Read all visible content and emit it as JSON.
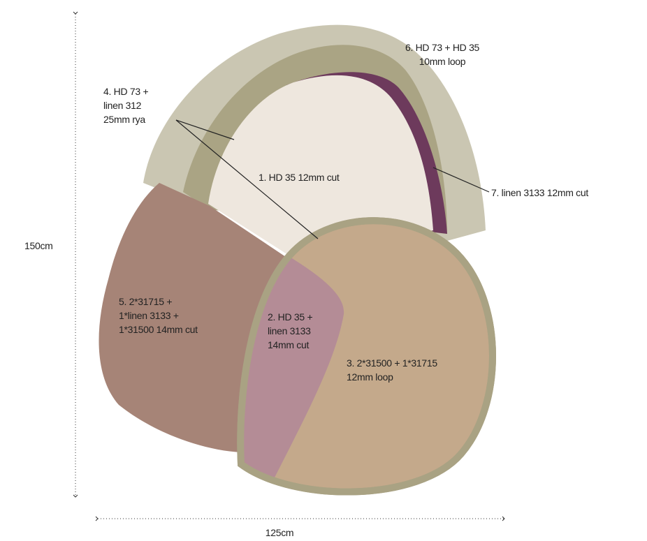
{
  "dimensions": {
    "height": "150cm",
    "width": "125cm"
  },
  "regions": [
    {
      "lines": [
        "1. HD 35  12mm cut"
      ]
    },
    {
      "lines": [
        "2. HD 35 +",
        "linen 3133",
        "14mm cut"
      ]
    },
    {
      "lines": [
        "3. 2*31500 + 1*31715",
        "12mm loop"
      ]
    },
    {
      "lines": [
        "4. HD 73 +",
        "linen 312",
        "25mm rya"
      ]
    },
    {
      "lines": [
        "5. 2*31715 +",
        "1*linen 3133 +",
        "1*31500  14mm cut"
      ]
    },
    {
      "lines": [
        "6. HD 73 + HD 35",
        "10mm loop"
      ]
    },
    {
      "lines": [
        "7. linen 3133 12mm cut"
      ]
    }
  ]
}
